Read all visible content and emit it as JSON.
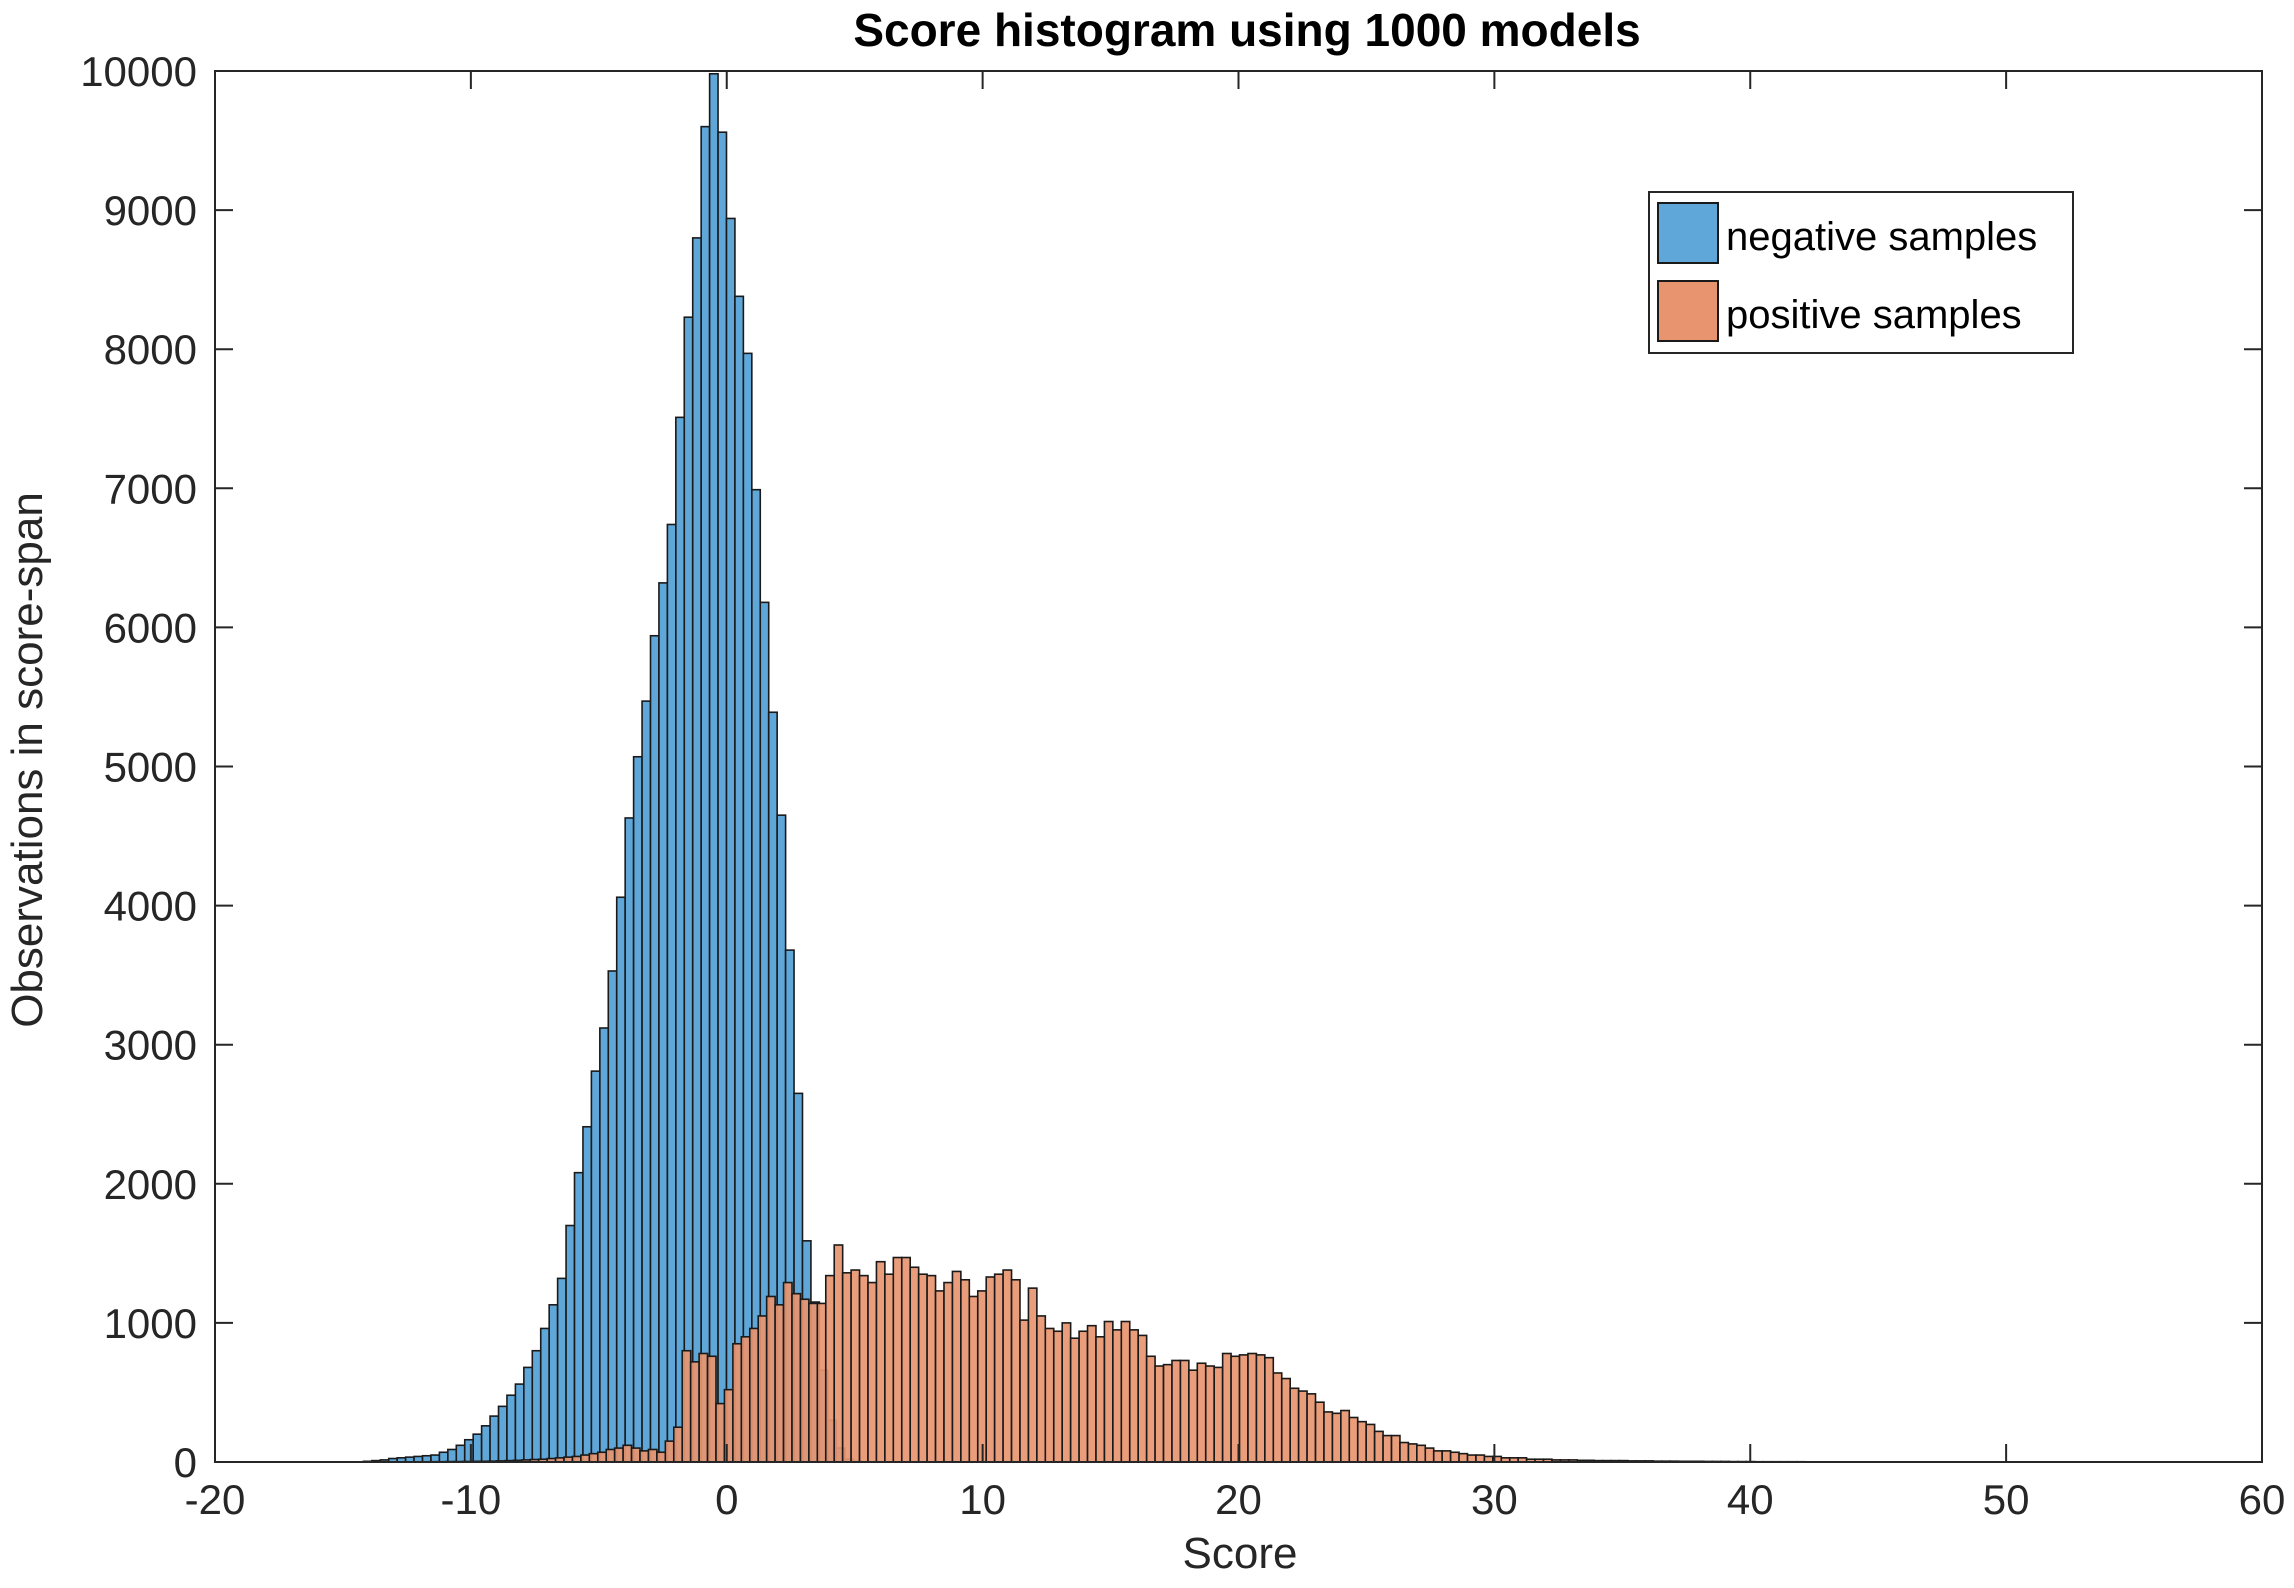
{
  "chart_data": {
    "type": "bar",
    "title": "Score histogram using 1000 models",
    "xlabel": "Score",
    "ylabel": "Observations in score-span",
    "xlim": [
      -20,
      60
    ],
    "ylim": [
      0,
      10000
    ],
    "xticks": [
      -20,
      -10,
      0,
      10,
      20,
      30,
      40,
      50,
      60
    ],
    "yticks": [
      0,
      1000,
      2000,
      3000,
      4000,
      5000,
      6000,
      7000,
      8000,
      9000,
      10000
    ],
    "grid": false,
    "legend_position": "top-right",
    "bin_width": 0.33,
    "series": [
      {
        "name": "negative samples",
        "color": "#5fa7d8",
        "start": -14.2,
        "values": [
          5,
          10,
          15,
          25,
          30,
          35,
          40,
          45,
          50,
          70,
          90,
          120,
          160,
          200,
          260,
          330,
          400,
          480,
          560,
          680,
          800,
          960,
          1130,
          1320,
          1700,
          2080,
          2410,
          2810,
          3120,
          3530,
          4060,
          4630,
          5070,
          5470,
          5940,
          6320,
          6740,
          7510,
          8230,
          8800,
          9600,
          9980,
          9560,
          8940,
          8380,
          7970,
          6990,
          6180,
          5390,
          4650,
          3680,
          2650,
          1590,
          1150,
          660,
          300,
          100,
          20,
          5
        ]
      },
      {
        "name": "positive samples",
        "color": "#e8956f",
        "start": -12.3,
        "values": [
          1,
          1,
          2,
          2,
          3,
          3,
          4,
          5,
          5,
          6,
          8,
          10,
          12,
          15,
          18,
          20,
          25,
          30,
          35,
          40,
          50,
          60,
          70,
          90,
          100,
          120,
          100,
          80,
          90,
          70,
          150,
          250,
          800,
          720,
          780,
          760,
          420,
          520,
          850,
          900,
          960,
          1050,
          1190,
          1130,
          1290,
          1210,
          1170,
          1140,
          1140,
          1340,
          1560,
          1360,
          1380,
          1340,
          1290,
          1440,
          1350,
          1470,
          1470,
          1400,
          1350,
          1340,
          1230,
          1290,
          1370,
          1310,
          1190,
          1230,
          1330,
          1350,
          1380,
          1310,
          1020,
          1250,
          1050,
          960,
          940,
          1000,
          890,
          940,
          980,
          900,
          1010,
          950,
          1010,
          950,
          910,
          760,
          690,
          700,
          730,
          730,
          660,
          710,
          690,
          680,
          780,
          760,
          770,
          780,
          770,
          750,
          640,
          600,
          530,
          510,
          490,
          430,
          360,
          350,
          370,
          320,
          290,
          270,
          220,
          190,
          190,
          140,
          130,
          120,
          100,
          80,
          80,
          70,
          60,
          50,
          50,
          40,
          40,
          30,
          30,
          30,
          20,
          20,
          20,
          15,
          15,
          15,
          12,
          12,
          10,
          10,
          10,
          10,
          8,
          8,
          8,
          6,
          6,
          6,
          5,
          5,
          5,
          4,
          4,
          4,
          3,
          3,
          3,
          2,
          2,
          2,
          2,
          2,
          2,
          1,
          1,
          1,
          1,
          1
        ]
      }
    ]
  }
}
